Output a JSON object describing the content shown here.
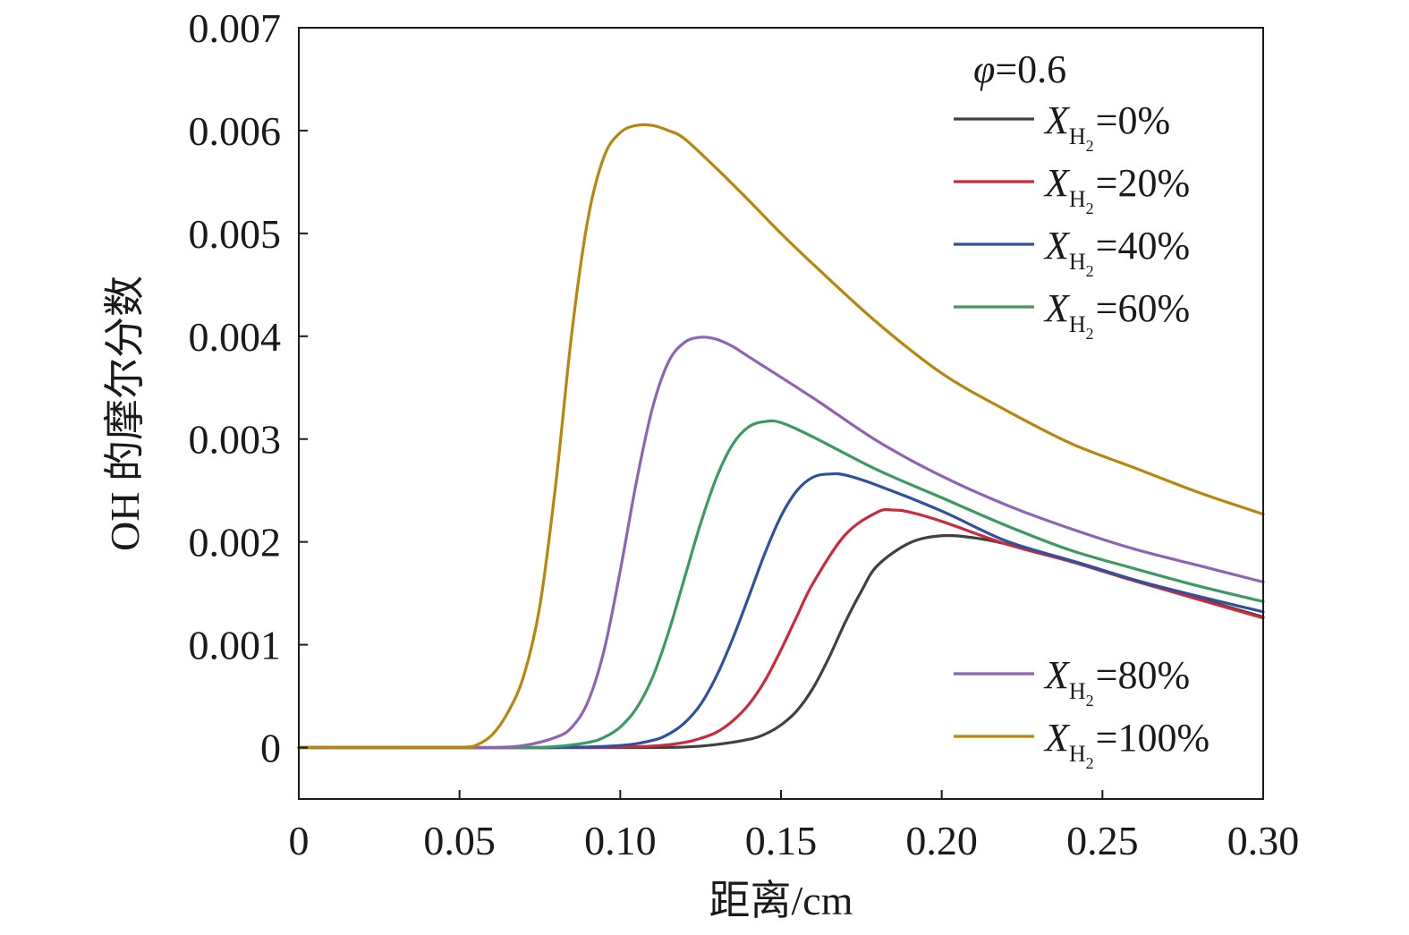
{
  "chart_data": {
    "type": "line",
    "ylabel": "OH 的摩尔分数",
    "xlabel": "距离/cm",
    "xlim": [
      0,
      0.3
    ],
    "ylim": [
      -0.0005,
      0.007
    ],
    "x_ticks": [
      "0",
      "0.05",
      "0.10",
      "0.15",
      "0.20",
      "0.25",
      "0.30"
    ],
    "x_tick_values": [
      0,
      0.05,
      0.1,
      0.15,
      0.2,
      0.25,
      0.3
    ],
    "y_ticks": [
      "0",
      "0.001",
      "0.002",
      "0.003",
      "0.004",
      "0.005",
      "0.006",
      "0.007"
    ],
    "y_tick_values": [
      0,
      0.001,
      0.002,
      0.003,
      0.004,
      0.005,
      0.006,
      0.007
    ],
    "grid": false,
    "legend_placement": "right",
    "legend_header": {
      "symbol": "φ",
      "text": "=0.6"
    },
    "legend_var": {
      "main": "X",
      "sub": "H",
      "subsub": "2"
    },
    "series": [
      {
        "label": "=0%",
        "color": "#404040",
        "x": [
          0,
          0.05,
          0.1,
          0.12,
          0.13,
          0.14,
          0.145,
          0.15,
          0.155,
          0.16,
          0.165,
          0.17,
          0.175,
          0.18,
          0.19,
          0.2,
          0.21,
          0.22,
          0.24,
          0.26,
          0.28,
          0.3
        ],
        "y": [
          0,
          0,
          0,
          5e-06,
          3e-05,
          8e-05,
          0.00013,
          0.00022,
          0.00036,
          0.00058,
          0.00088,
          0.00122,
          0.00152,
          0.00177,
          0.00199,
          0.00206,
          0.00204,
          0.00198,
          0.00182,
          0.00163,
          0.00145,
          0.00127
        ]
      },
      {
        "label": "=20%",
        "color": "#cc2a3a",
        "x": [
          0,
          0.05,
          0.09,
          0.11,
          0.12,
          0.125,
          0.13,
          0.135,
          0.14,
          0.145,
          0.15,
          0.155,
          0.16,
          0.17,
          0.18,
          0.185,
          0.19,
          0.2,
          0.22,
          0.24,
          0.26,
          0.28,
          0.3
        ],
        "y": [
          0,
          0,
          0,
          1.5e-05,
          5e-05,
          9e-05,
          0.00015,
          0.00026,
          0.00042,
          0.00065,
          0.00095,
          0.00128,
          0.0016,
          0.00207,
          0.00229,
          0.00231,
          0.00229,
          0.0022,
          0.00198,
          0.00181,
          0.00162,
          0.00144,
          0.00126
        ]
      },
      {
        "label": "=40%",
        "color": "#2f4fa0",
        "x": [
          0,
          0.05,
          0.08,
          0.1,
          0.11,
          0.115,
          0.12,
          0.125,
          0.13,
          0.135,
          0.14,
          0.145,
          0.15,
          0.155,
          0.16,
          0.165,
          0.17,
          0.18,
          0.2,
          0.22,
          0.24,
          0.26,
          0.28,
          0.3
        ],
        "y": [
          0,
          0,
          0,
          2e-05,
          7e-05,
          0.00013,
          0.00024,
          0.00042,
          0.0007,
          0.00106,
          0.00147,
          0.00189,
          0.00225,
          0.0025,
          0.00263,
          0.00266,
          0.00265,
          0.00255,
          0.0023,
          0.00201,
          0.00182,
          0.00163,
          0.00147,
          0.00132
        ]
      },
      {
        "label": "=60%",
        "color": "#3a9a62",
        "x": [
          0,
          0.05,
          0.07,
          0.08,
          0.09,
          0.095,
          0.1,
          0.105,
          0.11,
          0.115,
          0.12,
          0.125,
          0.13,
          0.135,
          0.14,
          0.145,
          0.15,
          0.16,
          0.18,
          0.2,
          0.22,
          0.24,
          0.26,
          0.28,
          0.3
        ],
        "y": [
          0,
          0,
          0,
          1e-05,
          5e-05,
          0.0001,
          0.0002,
          0.00038,
          0.00068,
          0.00112,
          0.00165,
          0.00218,
          0.00263,
          0.00295,
          0.00312,
          0.00317,
          0.00316,
          0.00302,
          0.0027,
          0.00243,
          0.00216,
          0.00192,
          0.00174,
          0.00157,
          0.00142
        ]
      },
      {
        "label": "=80%",
        "color": "#8e62b5",
        "x": [
          0,
          0.05,
          0.06,
          0.07,
          0.08,
          0.085,
          0.09,
          0.095,
          0.1,
          0.105,
          0.11,
          0.115,
          0.12,
          0.125,
          0.13,
          0.135,
          0.14,
          0.16,
          0.18,
          0.2,
          0.22,
          0.24,
          0.26,
          0.28,
          0.3
        ],
        "y": [
          0,
          0,
          0,
          2e-05,
          0.0001,
          0.0002,
          0.00045,
          0.00095,
          0.00172,
          0.00258,
          0.0033,
          0.00375,
          0.00394,
          0.00399,
          0.00397,
          0.0039,
          0.0038,
          0.0034,
          0.00298,
          0.00264,
          0.00236,
          0.00213,
          0.00193,
          0.00177,
          0.00161
        ]
      },
      {
        "label": "=100%",
        "color": "#b8860b",
        "x": [
          0,
          0.05,
          0.052,
          0.055,
          0.06,
          0.065,
          0.07,
          0.075,
          0.08,
          0.085,
          0.09,
          0.095,
          0.1,
          0.105,
          0.11,
          0.115,
          0.12,
          0.13,
          0.14,
          0.15,
          0.16,
          0.18,
          0.2,
          0.22,
          0.24,
          0.26,
          0.28,
          0.3
        ],
        "y": [
          0,
          0,
          5e-06,
          2e-05,
          0.00012,
          0.00034,
          0.0007,
          0.00138,
          0.00258,
          0.00405,
          0.00515,
          0.00575,
          0.00598,
          0.00605,
          0.00605,
          0.006,
          0.00592,
          0.00563,
          0.00532,
          0.005,
          0.0047,
          0.00413,
          0.00364,
          0.00328,
          0.00296,
          0.00272,
          0.00248,
          0.00227
        ]
      }
    ]
  }
}
